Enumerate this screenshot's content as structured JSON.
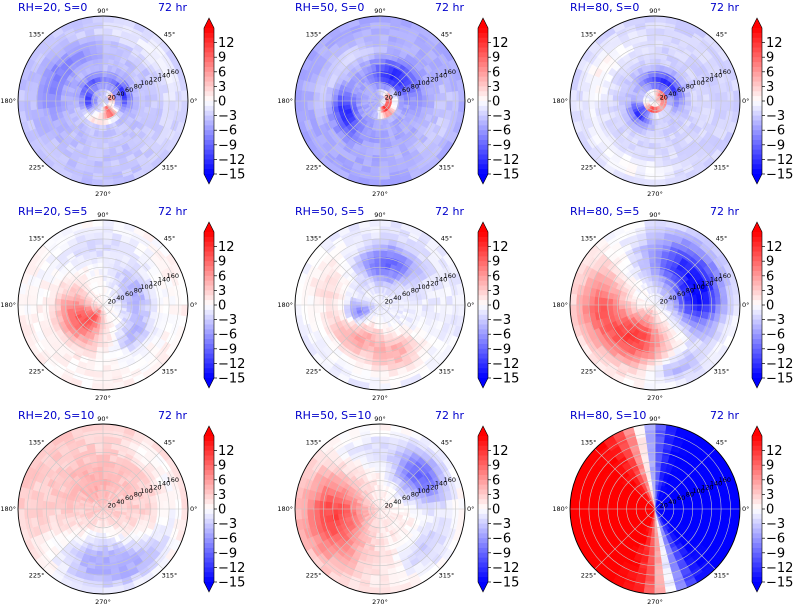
{
  "chart_data": [
    {
      "type": "heatmap",
      "title_left": "RH=20, S=0",
      "title_right": "72 hr",
      "pattern": "p00"
    },
    {
      "type": "heatmap",
      "title_left": "RH=50, S=0",
      "title_right": "72 hr",
      "pattern": "p01"
    },
    {
      "type": "heatmap",
      "title_left": "RH=80, S=0",
      "title_right": "72 hr",
      "pattern": "p02"
    },
    {
      "type": "heatmap",
      "title_left": "RH=20, S=5",
      "title_right": "72 hr",
      "pattern": "p10"
    },
    {
      "type": "heatmap",
      "title_left": "RH=50, S=5",
      "title_right": "72 hr",
      "pattern": "p11"
    },
    {
      "type": "heatmap",
      "title_left": "RH=80, S=5",
      "title_right": "72 hr",
      "pattern": "p12"
    },
    {
      "type": "heatmap",
      "title_left": "RH=20, S=10",
      "title_right": "72 hr",
      "pattern": "p20"
    },
    {
      "type": "heatmap",
      "title_left": "RH=50, S=10",
      "title_right": "72 hr",
      "pattern": "p21"
    },
    {
      "type": "heatmap",
      "title_left": "RH=80, S=10",
      "title_right": "72 hr",
      "pattern": "p22"
    }
  ],
  "shared": {
    "angle_ticks": [
      {
        "deg": 0,
        "label": "0°"
      },
      {
        "deg": 45,
        "label": "45°"
      },
      {
        "deg": 90,
        "label": "90°"
      },
      {
        "deg": 135,
        "label": "135°"
      },
      {
        "deg": 180,
        "label": "180°"
      },
      {
        "deg": 225,
        "label": "225°"
      },
      {
        "deg": 270,
        "label": "270°"
      },
      {
        "deg": 315,
        "label": "315°"
      }
    ],
    "radial_ticks": [
      20,
      40,
      60,
      80,
      100,
      120,
      140,
      160
    ],
    "rmax": 180,
    "colorbar": {
      "ticks": [
        12,
        9,
        6,
        3,
        0,
        -3,
        -6,
        -9,
        -12,
        -15
      ],
      "labels": [
        "12",
        "9",
        "6",
        "3",
        "0",
        "−3",
        "−6",
        "−9",
        "−12",
        "−15"
      ],
      "vmin": -15,
      "vmax": 15,
      "extend": "both",
      "colors": {
        "low": "#0000ff",
        "mid": "#ffffff",
        "high": "#ff0000"
      }
    },
    "title_color": "#0000cc"
  }
}
